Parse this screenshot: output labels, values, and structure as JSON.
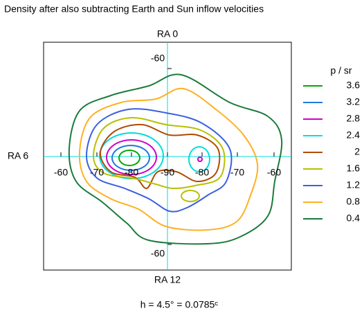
{
  "chart_data": {
    "type": "contour",
    "title": "Density after also subtracting Earth and Sun inflow velocities",
    "top_label": "RA 0",
    "left_label": "RA 6",
    "bottom_label": "RA 12",
    "legend_title": "p / sr",
    "footer": "h = 4.5° = 0.0785ᶜ",
    "x_tick_labels": [
      -60,
      -70,
      -80,
      -90,
      -80,
      -70,
      -60
    ],
    "y_tick_labels": [
      -60,
      -60
    ],
    "series": [
      {
        "name": "3.6",
        "value": 3.6,
        "color": "#00aa00"
      },
      {
        "name": "3.2",
        "value": 3.2,
        "color": "#1e78dc"
      },
      {
        "name": "2.8",
        "value": 2.8,
        "color": "#cc00cc"
      },
      {
        "name": "2.4",
        "value": 2.4,
        "color": "#00dddd"
      },
      {
        "name": "2",
        "value": 2,
        "color": "#b04a00"
      },
      {
        "name": "1.6",
        "value": 1.6,
        "color": "#b8c000"
      },
      {
        "name": "1.2",
        "value": 1.2,
        "color": "#3a5fe0"
      },
      {
        "name": "0.8",
        "value": 0.8,
        "color": "#ffb020"
      },
      {
        "name": "0.4",
        "value": 0.4,
        "color": "#1a7a3a"
      }
    ]
  }
}
